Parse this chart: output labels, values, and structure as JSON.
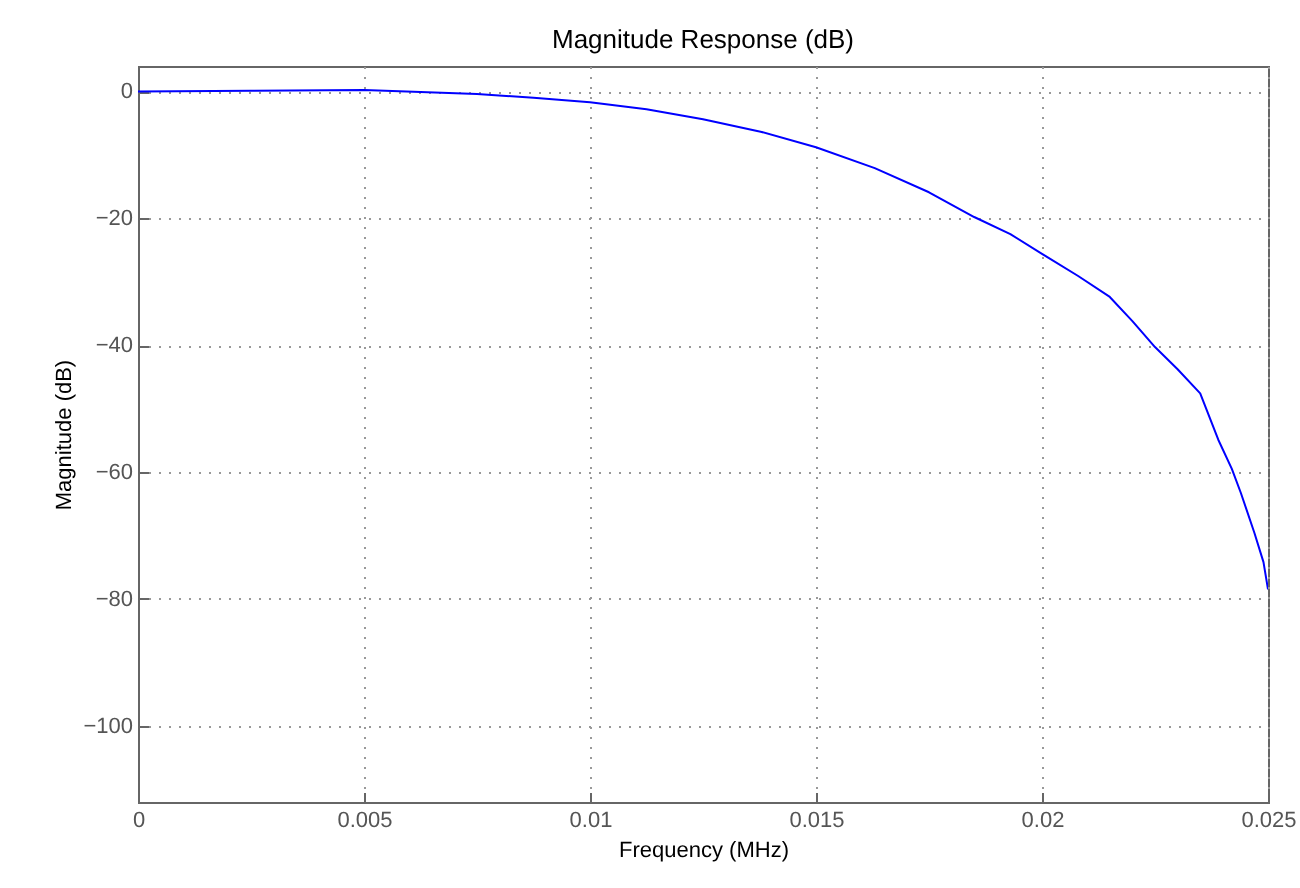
{
  "chart_data": {
    "type": "line",
    "title": "Magnitude Response (dB)",
    "xlabel": "Frequency (MHz)",
    "ylabel": "Magnitude (dB)",
    "x": [
      0,
      0.0025,
      0.005,
      0.0075,
      0.00875,
      0.01,
      0.01125,
      0.0125,
      0.0138,
      0.015,
      0.0163,
      0.0175,
      0.0185,
      0.0193,
      0.02,
      0.0208,
      0.0215,
      0.022,
      0.0225,
      0.023,
      0.0235,
      0.0239,
      0.0242,
      0.0244,
      0.0247,
      0.0249,
      0.025
    ],
    "series": [
      {
        "color": "#0000ff",
        "values": [
          0,
          0.1,
          0.2,
          -0.4,
          -1.0,
          -1.7,
          -2.8,
          -4.4,
          -6.4,
          -8.8,
          -12.1,
          -15.9,
          -19.8,
          -22.5,
          -25.6,
          -29.1,
          -32.4,
          -36.2,
          -40.3,
          -43.8,
          -47.6,
          -54.9,
          -59.5,
          -63.3,
          -69.6,
          -74.2,
          -78.5
        ]
      }
    ],
    "xlim": [
      0,
      0.025
    ],
    "xticks": [
      0,
      0.005,
      0.01,
      0.015,
      0.02,
      0.025
    ],
    "ylim": [
      -112,
      4
    ],
    "yticks": [
      -100,
      -80,
      -60,
      -40,
      -20,
      0
    ],
    "grid": true,
    "marker": "none",
    "line_style": "solid"
  }
}
